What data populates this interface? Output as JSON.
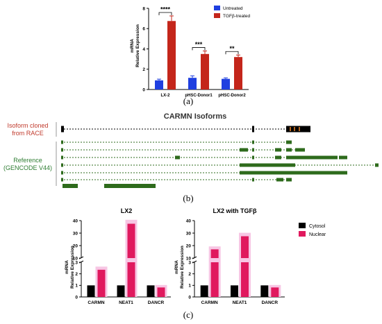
{
  "chart_data": [
    {
      "panel": "(a)",
      "type": "bar",
      "ylabel": "mRNA\nRelative Expression",
      "ylim": [
        0,
        8
      ],
      "yticks": [
        0,
        2,
        4,
        6,
        8
      ],
      "categories": [
        "LX-2",
        "pHSC-Donor1",
        "pHSC-Donor2"
      ],
      "series": [
        {
          "name": "Untreated",
          "color": "#1f3fe0",
          "values": [
            0.9,
            1.15,
            1.05
          ],
          "errors": [
            0.12,
            0.2,
            0.1
          ]
        },
        {
          "name": "TGFβ-treated",
          "color": "#c4261b",
          "values": [
            6.75,
            3.5,
            3.2
          ],
          "errors": [
            0.5,
            0.3,
            0.2
          ]
        }
      ],
      "significance": [
        "****",
        "***",
        "**"
      ],
      "legend": "top-right"
    },
    {
      "panel": "(b)",
      "type": "diagram",
      "title": "CARMN Isoforms",
      "group_labels": [
        {
          "text": "Isoform cloned\nfrom RACE",
          "color": "#c0392b"
        },
        {
          "text": "Reference\n(GENCODE V44)",
          "color": "#2e7d32"
        }
      ]
    },
    {
      "panel": "(c)",
      "type": "bar",
      "title": "LX2",
      "ylabel": "mRNA\nRelative Expression",
      "axis_break": [
        3,
        10
      ],
      "yticks": [
        0,
        1,
        2,
        3,
        10,
        20,
        30,
        40
      ],
      "categories": [
        "CARMN",
        "NEAT1",
        "DANCR"
      ],
      "series": [
        {
          "name": "Cytosol",
          "color": "#000000",
          "values": [
            1,
            1,
            1
          ]
        },
        {
          "name": "Nuclear",
          "color": "#e0195e",
          "values": [
            2.35,
            37.5,
            0.82
          ]
        }
      ],
      "legend": "right"
    },
    {
      "panel": "(c)",
      "type": "bar",
      "title": "LX2 with TGFβ",
      "ylabel": "mRNA\nRelative Expression",
      "axis_break": [
        3,
        10
      ],
      "yticks": [
        0,
        1,
        2,
        3,
        10,
        20,
        30,
        40
      ],
      "categories": [
        "CARMN",
        "NEAT1",
        "DANCR"
      ],
      "series": [
        {
          "name": "Cytosol",
          "color": "#000000",
          "values": [
            1,
            1,
            1
          ]
        },
        {
          "name": "Nuclear",
          "color": "#e0195e",
          "values": [
            17,
            27.5,
            0.82
          ]
        }
      ]
    }
  ]
}
